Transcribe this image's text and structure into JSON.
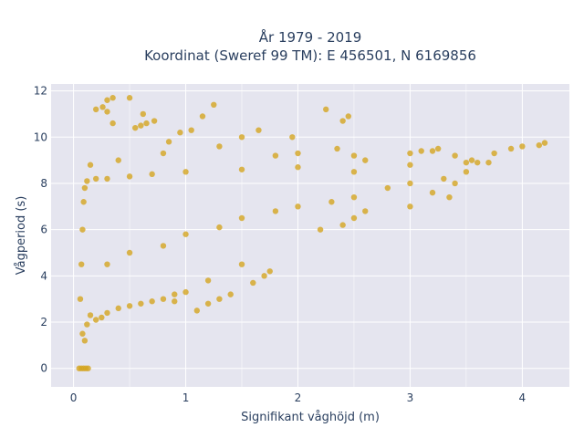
{
  "chart_data": {
    "type": "scatter",
    "title": "År 1979 - 2019",
    "subtitle": "Koordinat (Sweref 99 TM): E 456501, N 6169856",
    "xlabel": "Signifikant våghöjd (m)",
    "ylabel": "Vågperiod (s)",
    "xlim": [
      -0.2,
      4.42
    ],
    "ylim": [
      -0.8,
      12.3
    ],
    "x_ticks": [
      0,
      1,
      2,
      3,
      4
    ],
    "x_tick_labels": [
      "0",
      "1",
      "2",
      "3",
      "4"
    ],
    "y_ticks": [
      0,
      2,
      4,
      6,
      8,
      10,
      12
    ],
    "y_tick_labels": [
      "0",
      "2",
      "4",
      "6",
      "8",
      "10",
      "12"
    ],
    "grid": true,
    "legend": "none",
    "colors": {
      "marker": "#d4a520",
      "plot_background": "#e5e5ef",
      "grid": "#ffffff",
      "text": "#2a3f5f"
    },
    "series": [
      {
        "points": [
          [
            0.05,
            0
          ],
          [
            0.07,
            0
          ],
          [
            0.09,
            0
          ],
          [
            0.11,
            0
          ],
          [
            0.13,
            0
          ],
          [
            0.08,
            1.5
          ],
          [
            0.1,
            1.2
          ],
          [
            0.12,
            1.9
          ],
          [
            0.15,
            2.3
          ],
          [
            0.2,
            2.1
          ],
          [
            0.25,
            2.2
          ],
          [
            0.3,
            2.4
          ],
          [
            0.4,
            2.6
          ],
          [
            0.5,
            2.7
          ],
          [
            0.6,
            2.8
          ],
          [
            0.7,
            2.9
          ],
          [
            0.8,
            3.0
          ],
          [
            0.9,
            3.2
          ],
          [
            1.0,
            3.3
          ],
          [
            1.2,
            3.8
          ],
          [
            1.5,
            4.5
          ],
          [
            0.06,
            3.0
          ],
          [
            0.07,
            4.5
          ],
          [
            0.08,
            6.0
          ],
          [
            0.09,
            7.2
          ],
          [
            0.1,
            7.8
          ],
          [
            0.12,
            8.1
          ],
          [
            0.2,
            8.2
          ],
          [
            0.3,
            8.2
          ],
          [
            0.5,
            8.3
          ],
          [
            0.7,
            8.4
          ],
          [
            1.0,
            8.5
          ],
          [
            1.5,
            8.6
          ],
          [
            2.0,
            8.7
          ],
          [
            2.5,
            8.5
          ],
          [
            3.0,
            8.8
          ],
          [
            3.5,
            8.9
          ],
          [
            3.7,
            8.9
          ],
          [
            0.5,
            5.0
          ],
          [
            1.0,
            5.8
          ],
          [
            1.5,
            6.5
          ],
          [
            2.0,
            7.0
          ],
          [
            2.5,
            7.4
          ],
          [
            3.0,
            8.0
          ],
          [
            3.5,
            8.5
          ],
          [
            0.3,
            4.5
          ],
          [
            0.8,
            5.3
          ],
          [
            1.3,
            6.1
          ],
          [
            1.8,
            6.8
          ],
          [
            2.3,
            7.2
          ],
          [
            2.8,
            7.8
          ],
          [
            3.3,
            8.2
          ],
          [
            0.3,
            11.6
          ],
          [
            0.35,
            11.7
          ],
          [
            0.26,
            11.3
          ],
          [
            0.3,
            11.1
          ],
          [
            0.2,
            11.2
          ],
          [
            0.5,
            11.7
          ],
          [
            0.62,
            11.0
          ],
          [
            0.72,
            10.7
          ],
          [
            0.65,
            10.6
          ],
          [
            0.55,
            10.4
          ],
          [
            0.6,
            10.5
          ],
          [
            0.35,
            10.6
          ],
          [
            0.95,
            10.2
          ],
          [
            1.05,
            10.3
          ],
          [
            1.15,
            10.9
          ],
          [
            1.25,
            11.4
          ],
          [
            1.5,
            10.0
          ],
          [
            1.65,
            10.3
          ],
          [
            1.95,
            10.0
          ],
          [
            2.25,
            11.2
          ],
          [
            2.4,
            10.7
          ],
          [
            2.45,
            10.9
          ],
          [
            2.35,
            9.5
          ],
          [
            2.6,
            9.0
          ],
          [
            0.15,
            8.8
          ],
          [
            0.4,
            9.0
          ],
          [
            0.8,
            9.3
          ],
          [
            0.85,
            9.8
          ],
          [
            1.3,
            9.6
          ],
          [
            1.8,
            9.2
          ],
          [
            2.0,
            9.3
          ],
          [
            2.5,
            9.2
          ],
          [
            3.0,
            9.3
          ],
          [
            3.1,
            9.4
          ],
          [
            3.2,
            9.4
          ],
          [
            3.25,
            9.5
          ],
          [
            3.4,
            9.2
          ],
          [
            3.55,
            9.0
          ],
          [
            3.6,
            8.9
          ],
          [
            3.75,
            9.3
          ],
          [
            3.9,
            9.5
          ],
          [
            4.0,
            9.6
          ],
          [
            4.15,
            9.65
          ],
          [
            4.2,
            9.75
          ],
          [
            3.35,
            7.4
          ],
          [
            3.4,
            8.0
          ],
          [
            3.0,
            7.0
          ],
          [
            2.5,
            6.5
          ],
          [
            2.2,
            6.0
          ],
          [
            2.4,
            6.2
          ],
          [
            2.6,
            6.8
          ],
          [
            3.2,
            7.6
          ],
          [
            1.75,
            4.2
          ],
          [
            1.7,
            4.0
          ],
          [
            1.6,
            3.7
          ],
          [
            1.4,
            3.2
          ],
          [
            1.3,
            3.0
          ],
          [
            1.2,
            2.8
          ],
          [
            1.1,
            2.5
          ],
          [
            0.9,
            2.9
          ]
        ]
      }
    ]
  }
}
